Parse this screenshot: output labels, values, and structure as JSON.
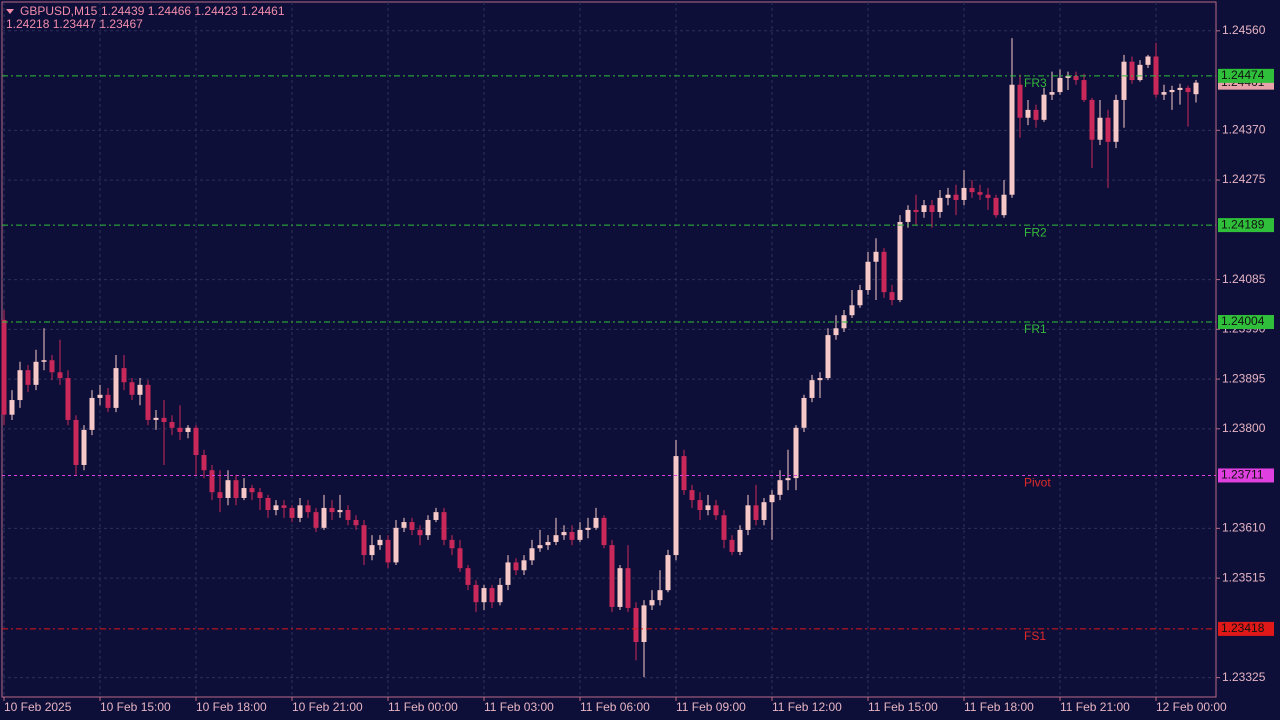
{
  "chart_data": {
    "type": "candlestick",
    "title": "GBPUSD,M15",
    "subtitle": "1.24439 1.24466 1.24423 1.24461",
    "annotations": [
      "1.24218 1.23447 1.23467"
    ],
    "categories": [
      "10 Feb 2025",
      null,
      null,
      null,
      null,
      null,
      null,
      null,
      null,
      null,
      null,
      null,
      "10 Feb 15:00",
      null,
      null,
      null,
      null,
      null,
      null,
      null,
      null,
      null,
      null,
      null,
      "10 Feb 18:00",
      null,
      null,
      null,
      null,
      null,
      null,
      null,
      null,
      null,
      null,
      null,
      "10 Feb 21:00",
      null,
      null,
      null,
      null,
      null,
      null,
      null,
      null,
      null,
      null,
      null,
      "11 Feb 00:00",
      null,
      null,
      null,
      null,
      null,
      null,
      null,
      null,
      null,
      null,
      null,
      "11 Feb 03:00",
      null,
      null,
      null,
      null,
      null,
      null,
      null,
      null,
      null,
      null,
      null,
      "11 Feb 06:00",
      null,
      null,
      null,
      null,
      null,
      null,
      null,
      null,
      null,
      null,
      null,
      "11 Feb 09:00",
      null,
      null,
      null,
      null,
      null,
      null,
      null,
      null,
      null,
      null,
      null,
      "11 Feb 12:00",
      null,
      null,
      null,
      null,
      null,
      null,
      null,
      null,
      null,
      null,
      null,
      "11 Feb 15:00",
      null,
      null,
      null,
      null,
      null,
      null,
      null,
      null,
      null,
      null,
      null,
      "11 Feb 18:00",
      null,
      null,
      null,
      null,
      null,
      null,
      null,
      null,
      null,
      null,
      null,
      "11 Feb 21:00",
      null,
      null,
      null,
      null,
      null,
      null,
      null,
      null,
      null,
      null,
      null,
      "12 Feb 00:00",
      null,
      null,
      null,
      null,
      null
    ],
    "open": [
      1.24008,
      1.23827,
      1.23855,
      1.23912,
      1.23884,
      1.23928,
      1.23931,
      1.23908,
      1.23897,
      1.23817,
      1.23731,
      1.23798,
      1.23859,
      1.23865,
      1.2384,
      1.23916,
      1.23889,
      1.23865,
      1.23884,
      1.23817,
      1.23821,
      1.23813,
      1.23802,
      1.23794,
      1.23802,
      1.2375,
      1.23721,
      1.23679,
      1.23668,
      1.23702,
      1.23668,
      1.23687,
      1.23679,
      1.23668,
      1.23645,
      1.23654,
      1.23649,
      1.2363,
      1.23654,
      1.23641,
      1.23611,
      1.23649,
      1.23641,
      1.23645,
      1.23626,
      1.23616,
      1.23559,
      1.23578,
      1.23588,
      1.23545,
      1.23611,
      1.23622,
      1.23607,
      1.23597,
      1.23626,
      1.23641,
      1.23588,
      1.23572,
      1.23534,
      1.23502,
      1.23469,
      1.23496,
      1.23469,
      1.23502,
      1.23545,
      1.2353,
      1.23549,
      1.23572,
      1.23578,
      1.23584,
      1.23597,
      1.23603,
      1.23588,
      1.23607,
      1.23611,
      1.2363,
      1.23578,
      1.2346,
      1.23534,
      1.23458,
      1.23393,
      1.23463,
      1.23473,
      1.23492,
      1.23559,
      1.23748,
      1.23683,
      1.23664,
      1.23645,
      1.23654,
      1.23635,
      1.23588,
      1.23565,
      1.23607,
      1.23654,
      1.23626,
      1.2366,
      1.23674,
      1.23702,
      1.23706,
      1.23802,
      1.23859,
      1.23893,
      1.23897,
      1.23979,
      1.23992,
      1.24017,
      1.24036,
      1.24065,
      1.24119,
      1.24138,
      1.24061,
      1.24046,
      1.24195,
      1.24218,
      1.24214,
      1.24227,
      1.24214,
      1.24241,
      1.24247,
      1.24237,
      1.2426,
      1.24252,
      1.24247,
      1.24241,
      1.24208,
      1.24247,
      1.24457,
      1.24394,
      1.24409,
      1.2439,
      1.24438,
      1.24443,
      1.2447,
      1.24474,
      1.24466,
      1.24428,
      1.24352,
      1.24394,
      1.24348,
      1.24428,
      1.24501,
      1.24466,
      1.24495,
      1.24511,
      1.24438,
      1.24443,
      1.24447,
      1.24451,
      1.24439
    ],
    "high": [
      1.24027,
      1.23874,
      1.23928,
      1.23922,
      1.23951,
      1.23992,
      1.23941,
      1.2397,
      1.23912,
      1.23826,
      1.23807,
      1.23874,
      1.23884,
      1.23878,
      1.23941,
      1.23941,
      1.23897,
      1.23897,
      1.23893,
      1.23836,
      1.23855,
      1.23826,
      1.23845,
      1.23807,
      1.23807,
      1.2376,
      1.23731,
      1.23721,
      1.23721,
      1.23712,
      1.23706,
      1.23693,
      1.23687,
      1.23674,
      1.23664,
      1.23664,
      1.23654,
      1.23668,
      1.23664,
      1.23649,
      1.23674,
      1.23664,
      1.23674,
      1.23654,
      1.23635,
      1.23626,
      1.23597,
      1.23597,
      1.23597,
      1.23626,
      1.2363,
      1.2363,
      1.23616,
      1.23635,
      1.23649,
      1.23649,
      1.23597,
      1.23588,
      1.2354,
      1.23511,
      1.23502,
      1.23502,
      1.23515,
      1.23559,
      1.23553,
      1.23559,
      1.23588,
      1.23607,
      1.23597,
      1.2363,
      1.23616,
      1.23616,
      1.23622,
      1.2363,
      1.23649,
      1.23635,
      1.23588,
      1.2354,
      1.23578,
      1.23469,
      1.23473,
      1.23492,
      1.2353,
      1.23569,
      1.23779,
      1.2376,
      1.23693,
      1.23679,
      1.23674,
      1.23664,
      1.23645,
      1.23597,
      1.23616,
      1.23674,
      1.23693,
      1.23668,
      1.23683,
      1.23721,
      1.2376,
      1.23807,
      1.23865,
      1.23903,
      1.23908,
      1.23992,
      1.24017,
      1.24027,
      1.24065,
      1.24075,
      1.24138,
      1.24164,
      1.24145,
      1.24075,
      1.24208,
      1.24227,
      1.24247,
      1.24237,
      1.24237,
      1.24256,
      1.2426,
      1.24266,
      1.24294,
      1.24275,
      1.24266,
      1.2426,
      1.24247,
      1.24275,
      1.24546,
      1.24476,
      1.24428,
      1.24419,
      1.24451,
      1.24482,
      1.24486,
      1.24482,
      1.24482,
      1.24478,
      1.24432,
      1.24428,
      1.24409,
      1.24438,
      1.24514,
      1.24511,
      1.24504,
      1.24514,
      1.24537,
      1.24457,
      1.24455,
      1.24459,
      1.24455,
      1.24466
    ],
    "low": [
      1.23807,
      1.23817,
      1.2384,
      1.2387,
      1.23874,
      1.23912,
      1.23893,
      1.23884,
      1.23807,
      1.23712,
      1.23721,
      1.23788,
      1.23845,
      1.23832,
      1.23832,
      1.23874,
      1.23855,
      1.23845,
      1.23807,
      1.23798,
      1.23731,
      1.23788,
      1.23779,
      1.23782,
      1.23712,
      1.23706,
      1.23664,
      1.23641,
      1.23654,
      1.23654,
      1.23664,
      1.23664,
      1.23645,
      1.2363,
      1.23635,
      1.2363,
      1.23622,
      1.23622,
      1.2363,
      1.23603,
      1.23607,
      1.23626,
      1.2363,
      1.23616,
      1.23607,
      1.2354,
      1.23549,
      1.23569,
      1.23534,
      1.2354,
      1.23603,
      1.23597,
      1.23578,
      1.23588,
      1.23622,
      1.23578,
      1.23559,
      1.23527,
      1.23492,
      1.2345,
      1.23454,
      1.23458,
      1.23463,
      1.23492,
      1.23521,
      1.23521,
      1.2354,
      1.23565,
      1.23569,
      1.23578,
      1.23588,
      1.23578,
      1.23584,
      1.23591,
      1.23607,
      1.23572,
      1.2345,
      1.23454,
      1.2345,
      1.23358,
      1.23326,
      1.23454,
      1.23463,
      1.23488,
      1.23549,
      1.23674,
      1.23649,
      1.23626,
      1.23635,
      1.23626,
      1.23572,
      1.23559,
      1.23559,
      1.23597,
      1.23616,
      1.23616,
      1.23588,
      1.23664,
      1.23683,
      1.23683,
      1.23794,
      1.23851,
      1.23859,
      1.23893,
      1.2397,
      1.23985,
      1.24012,
      1.24031,
      1.24056,
      1.24046,
      1.2405,
      1.24036,
      1.24042,
      1.24184,
      1.24189,
      1.24203,
      1.24184,
      1.24203,
      1.24227,
      1.24208,
      1.24227,
      1.24241,
      1.24237,
      1.24218,
      1.24203,
      1.24203,
      1.24241,
      1.24356,
      1.2438,
      1.24375,
      1.24386,
      1.24428,
      1.24438,
      1.24447,
      1.24457,
      1.24424,
      1.24298,
      1.24342,
      1.2426,
      1.24336,
      1.24375,
      1.24459,
      1.24463,
      1.24489,
      1.24432,
      1.24428,
      1.24409,
      1.24419,
      1.24377,
      1.24423
    ],
    "close": [
      1.23827,
      1.23855,
      1.23912,
      1.23884,
      1.23928,
      1.23931,
      1.23908,
      1.23897,
      1.23817,
      1.23731,
      1.23798,
      1.23859,
      1.23865,
      1.2384,
      1.23916,
      1.23889,
      1.23865,
      1.23884,
      1.23817,
      1.23821,
      1.23813,
      1.23802,
      1.23794,
      1.23802,
      1.2375,
      1.23721,
      1.23679,
      1.23668,
      1.23702,
      1.23668,
      1.23687,
      1.23679,
      1.23668,
      1.23645,
      1.23654,
      1.23649,
      1.2363,
      1.23654,
      1.23641,
      1.23611,
      1.23649,
      1.23641,
      1.23645,
      1.23626,
      1.23616,
      1.23559,
      1.23578,
      1.23588,
      1.23545,
      1.23611,
      1.23622,
      1.23607,
      1.23597,
      1.23626,
      1.23641,
      1.23588,
      1.23572,
      1.23534,
      1.23502,
      1.23469,
      1.23496,
      1.23469,
      1.23502,
      1.23545,
      1.2353,
      1.23549,
      1.23572,
      1.23578,
      1.23584,
      1.23597,
      1.23603,
      1.23588,
      1.23607,
      1.23611,
      1.2363,
      1.23578,
      1.2346,
      1.23534,
      1.23458,
      1.23393,
      1.23463,
      1.23473,
      1.23492,
      1.23559,
      1.23748,
      1.23683,
      1.23664,
      1.23645,
      1.23654,
      1.23635,
      1.23588,
      1.23565,
      1.23607,
      1.23654,
      1.23626,
      1.2366,
      1.23674,
      1.23702,
      1.23706,
      1.23802,
      1.23859,
      1.23893,
      1.23897,
      1.23979,
      1.23992,
      1.24017,
      1.24036,
      1.24065,
      1.24119,
      1.24138,
      1.24061,
      1.24046,
      1.24195,
      1.24218,
      1.24214,
      1.24227,
      1.24214,
      1.24241,
      1.24247,
      1.24237,
      1.2426,
      1.24252,
      1.24247,
      1.24241,
      1.24208,
      1.24247,
      1.24457,
      1.24394,
      1.24409,
      1.2439,
      1.24438,
      1.24443,
      1.2447,
      1.24474,
      1.24466,
      1.24428,
      1.24352,
      1.24394,
      1.24348,
      1.24428,
      1.24501,
      1.24466,
      1.24495,
      1.24511,
      1.24438,
      1.24443,
      1.24447,
      1.24451,
      1.24443,
      1.24461
    ],
    "up_color": "#f6c8c8",
    "down_color": "#c8285a",
    "last_price_color": "#e8a2aa",
    "ylim": [
      1.23288,
      1.24615
    ],
    "yticks": [
      {
        "value": 1.2456,
        "label": "1.24560"
      },
      {
        "value": 1.2437,
        "label": "1.24370"
      },
      1.24275,
      1.24085,
      {
        "value": 1.2399,
        "label": "1.23990"
      },
      1.23895,
      {
        "value": 1.238,
        "label": "1.23800"
      },
      {
        "value": 1.2361,
        "label": "1.23610"
      },
      1.23515,
      1.23325
    ],
    "grid": true,
    "levels": [
      {
        "name": "FR3",
        "value": 1.24474,
        "color": "#2fbf3a",
        "text_color": "#33b83a",
        "dash": "6 3 2 3"
      },
      {
        "name": "FR2",
        "value": 1.24189,
        "color": "#2fbf3a",
        "text_color": "#33b83a",
        "dash": "6 3 2 3"
      },
      {
        "name": "FR1",
        "value": 1.24004,
        "color": "#2fbf3a",
        "text_color": "#33b83a",
        "dash": "6 3 2 3"
      },
      {
        "name": "Pivot",
        "value": 1.23711,
        "color": "#e040e0",
        "text_color": "#e02a2a",
        "dash": "3 3"
      },
      {
        "name": "FS1",
        "value": 1.23418,
        "color": "#e01818",
        "text_color": "#e02a2a",
        "dash": "6 3 2 3"
      }
    ]
  }
}
